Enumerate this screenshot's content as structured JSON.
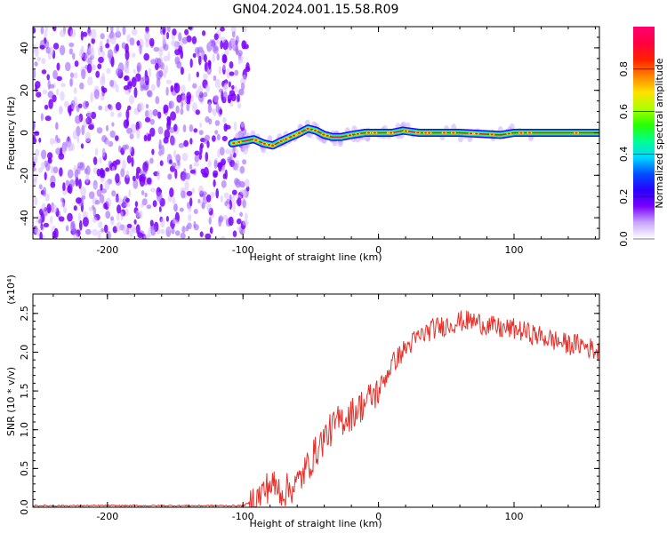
{
  "title": "GN04.2024.001.15.58.R09",
  "colors": {
    "snr_line": "#e8302a",
    "signal_core": "#e8193a",
    "noise": "#6a00ff",
    "axis": "#000000",
    "colorbar": [
      "#ffffff",
      "#c8a6ff",
      "#7a00ff",
      "#2a00ff",
      "#0050ff",
      "#00d8ff",
      "#00ff90",
      "#28ff00",
      "#b0ff00",
      "#ffe000",
      "#ff8000",
      "#ff2000",
      "#ff0040",
      "#ff0070"
    ]
  },
  "chart_data": [
    {
      "type": "heatmap",
      "xlabel": "Height of straight line (km)",
      "ylabel": "Frequency (Hz)",
      "xlim": [
        -255,
        163
      ],
      "ylim": [
        -50,
        50
      ],
      "x_ticks": [
        -200,
        -100,
        0,
        100
      ],
      "y_ticks": [
        -40,
        -20,
        0,
        20,
        40
      ],
      "colorbar": {
        "label": "Normalized spectral amplitude",
        "range": [
          0.0,
          1.0
        ],
        "ticks": [
          "0.0",
          "0.2",
          "0.4",
          "0.6",
          "0.8"
        ],
        "tick_values": [
          0.0,
          0.2,
          0.4,
          0.6,
          0.8
        ]
      },
      "noise_region_x": [
        -255,
        -100
      ],
      "signal_track": {
        "x": [
          -108,
          -100,
          -92,
          -85,
          -78,
          -72,
          -65,
          -58,
          -52,
          -46,
          -40,
          -34,
          -28,
          -20,
          -10,
          0,
          10,
          18,
          30,
          60,
          90,
          100,
          163
        ],
        "frequency_hz": [
          -5,
          -4,
          -3,
          -5,
          -6,
          -4,
          -2,
          0,
          2,
          1,
          -1,
          -2,
          -2,
          -1,
          0,
          0,
          0,
          1,
          0,
          0,
          -1,
          0,
          0
        ]
      }
    },
    {
      "type": "line",
      "xlabel": "Height of straight line (km)",
      "ylabel": "SNR (10 * v/v)",
      "y_multiplier": "(x10⁴)",
      "xlim": [
        -255,
        163
      ],
      "ylim": [
        0,
        2.75
      ],
      "x_ticks": [
        -200,
        -100,
        0,
        100
      ],
      "y_ticks": [
        "0.0",
        "0.5",
        "1.0",
        "1.5",
        "2.0",
        "2.5"
      ],
      "y_tick_values": [
        0.0,
        0.5,
        1.0,
        1.5,
        2.0,
        2.5
      ],
      "series": [
        {
          "x": [
            -255,
            -200,
            -150,
            -100,
            -90,
            -80,
            -70,
            -60,
            -50,
            -40,
            -30,
            -20,
            -10,
            0,
            10,
            20,
            30,
            40,
            50,
            60,
            70,
            80,
            90,
            100,
            110,
            120,
            130,
            140,
            150,
            163
          ],
          "values": [
            0.02,
            0.02,
            0.02,
            0.02,
            0.1,
            0.3,
            0.2,
            0.3,
            0.6,
            0.9,
            1.1,
            1.2,
            1.35,
            1.5,
            1.85,
            2.05,
            2.2,
            2.3,
            2.35,
            2.4,
            2.4,
            2.35,
            2.3,
            2.3,
            2.25,
            2.2,
            2.15,
            2.1,
            2.1,
            2.0
          ]
        }
      ]
    }
  ]
}
